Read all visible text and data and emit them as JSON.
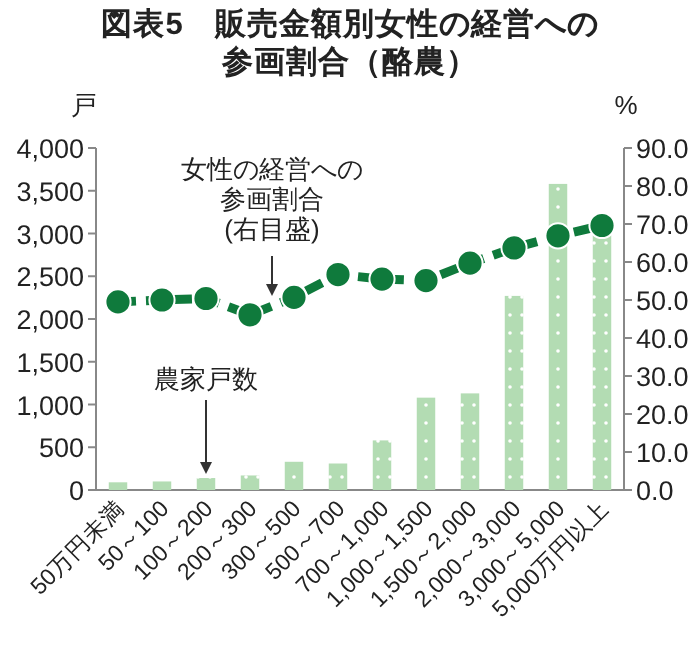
{
  "chart_data": {
    "type": "bar",
    "title": "図表5　販売金額別女性の経営への参画割合（酪農）",
    "ylabel": "戸",
    "y2label": "%",
    "categories": [
      "50万円未満",
      "50～100",
      "100～200",
      "200～300",
      "300～500",
      "500～700",
      "700～1,000",
      "1,000～1,500",
      "1,500～2,000",
      "2,000～3,000",
      "3,000～5,000",
      "5,000万円以上"
    ],
    "series": [
      {
        "name": "農家戸数",
        "color": "#b3dcb3",
        "values": [
          90,
          100,
          140,
          170,
          330,
          310,
          580,
          1080,
          1130,
          2270,
          3580,
          2980
        ]
      },
      {
        "name": "女性の経営への参画割合(右目盛)",
        "type": "line",
        "axis": "y2",
        "color": "#0f7a3c",
        "marker": "circle",
        "line_style": "dashed",
        "values": [
          49.5,
          50.0,
          50.4,
          46.1,
          50.7,
          56.7,
          55.5,
          55.1,
          59.7,
          63.7,
          66.9,
          69.6
        ]
      }
    ],
    "ylim": [
      0,
      4000
    ],
    "yticks": [
      0,
      {
        "value": 500,
        "label": "500"
      },
      {
        "value": 1000,
        "label": "1,000"
      },
      {
        "value": 1500,
        "label": "1,500"
      },
      {
        "value": 2000,
        "label": "2,000"
      },
      {
        "value": 2500,
        "label": "2,500"
      },
      {
        "value": 3000,
        "label": "3,000"
      },
      {
        "value": 3500,
        "label": "3,500"
      },
      {
        "value": 4000,
        "label": "4,000"
      }
    ],
    "y2lim": [
      0,
      90
    ],
    "y2ticks": [
      {
        "value": 0,
        "label": "0.0"
      },
      {
        "value": 10,
        "label": "10.0"
      },
      {
        "value": 20,
        "label": "20.0"
      },
      {
        "value": 30,
        "label": "30.0"
      },
      {
        "value": 40,
        "label": "40.0"
      },
      {
        "value": 50,
        "label": "50.0"
      },
      {
        "value": 60,
        "label": "60.0"
      },
      {
        "value": 70,
        "label": "70.0"
      },
      {
        "value": 80,
        "label": "80.0"
      },
      {
        "value": 90,
        "label": "90.0"
      }
    ],
    "grid": false,
    "legend": false
  }
}
